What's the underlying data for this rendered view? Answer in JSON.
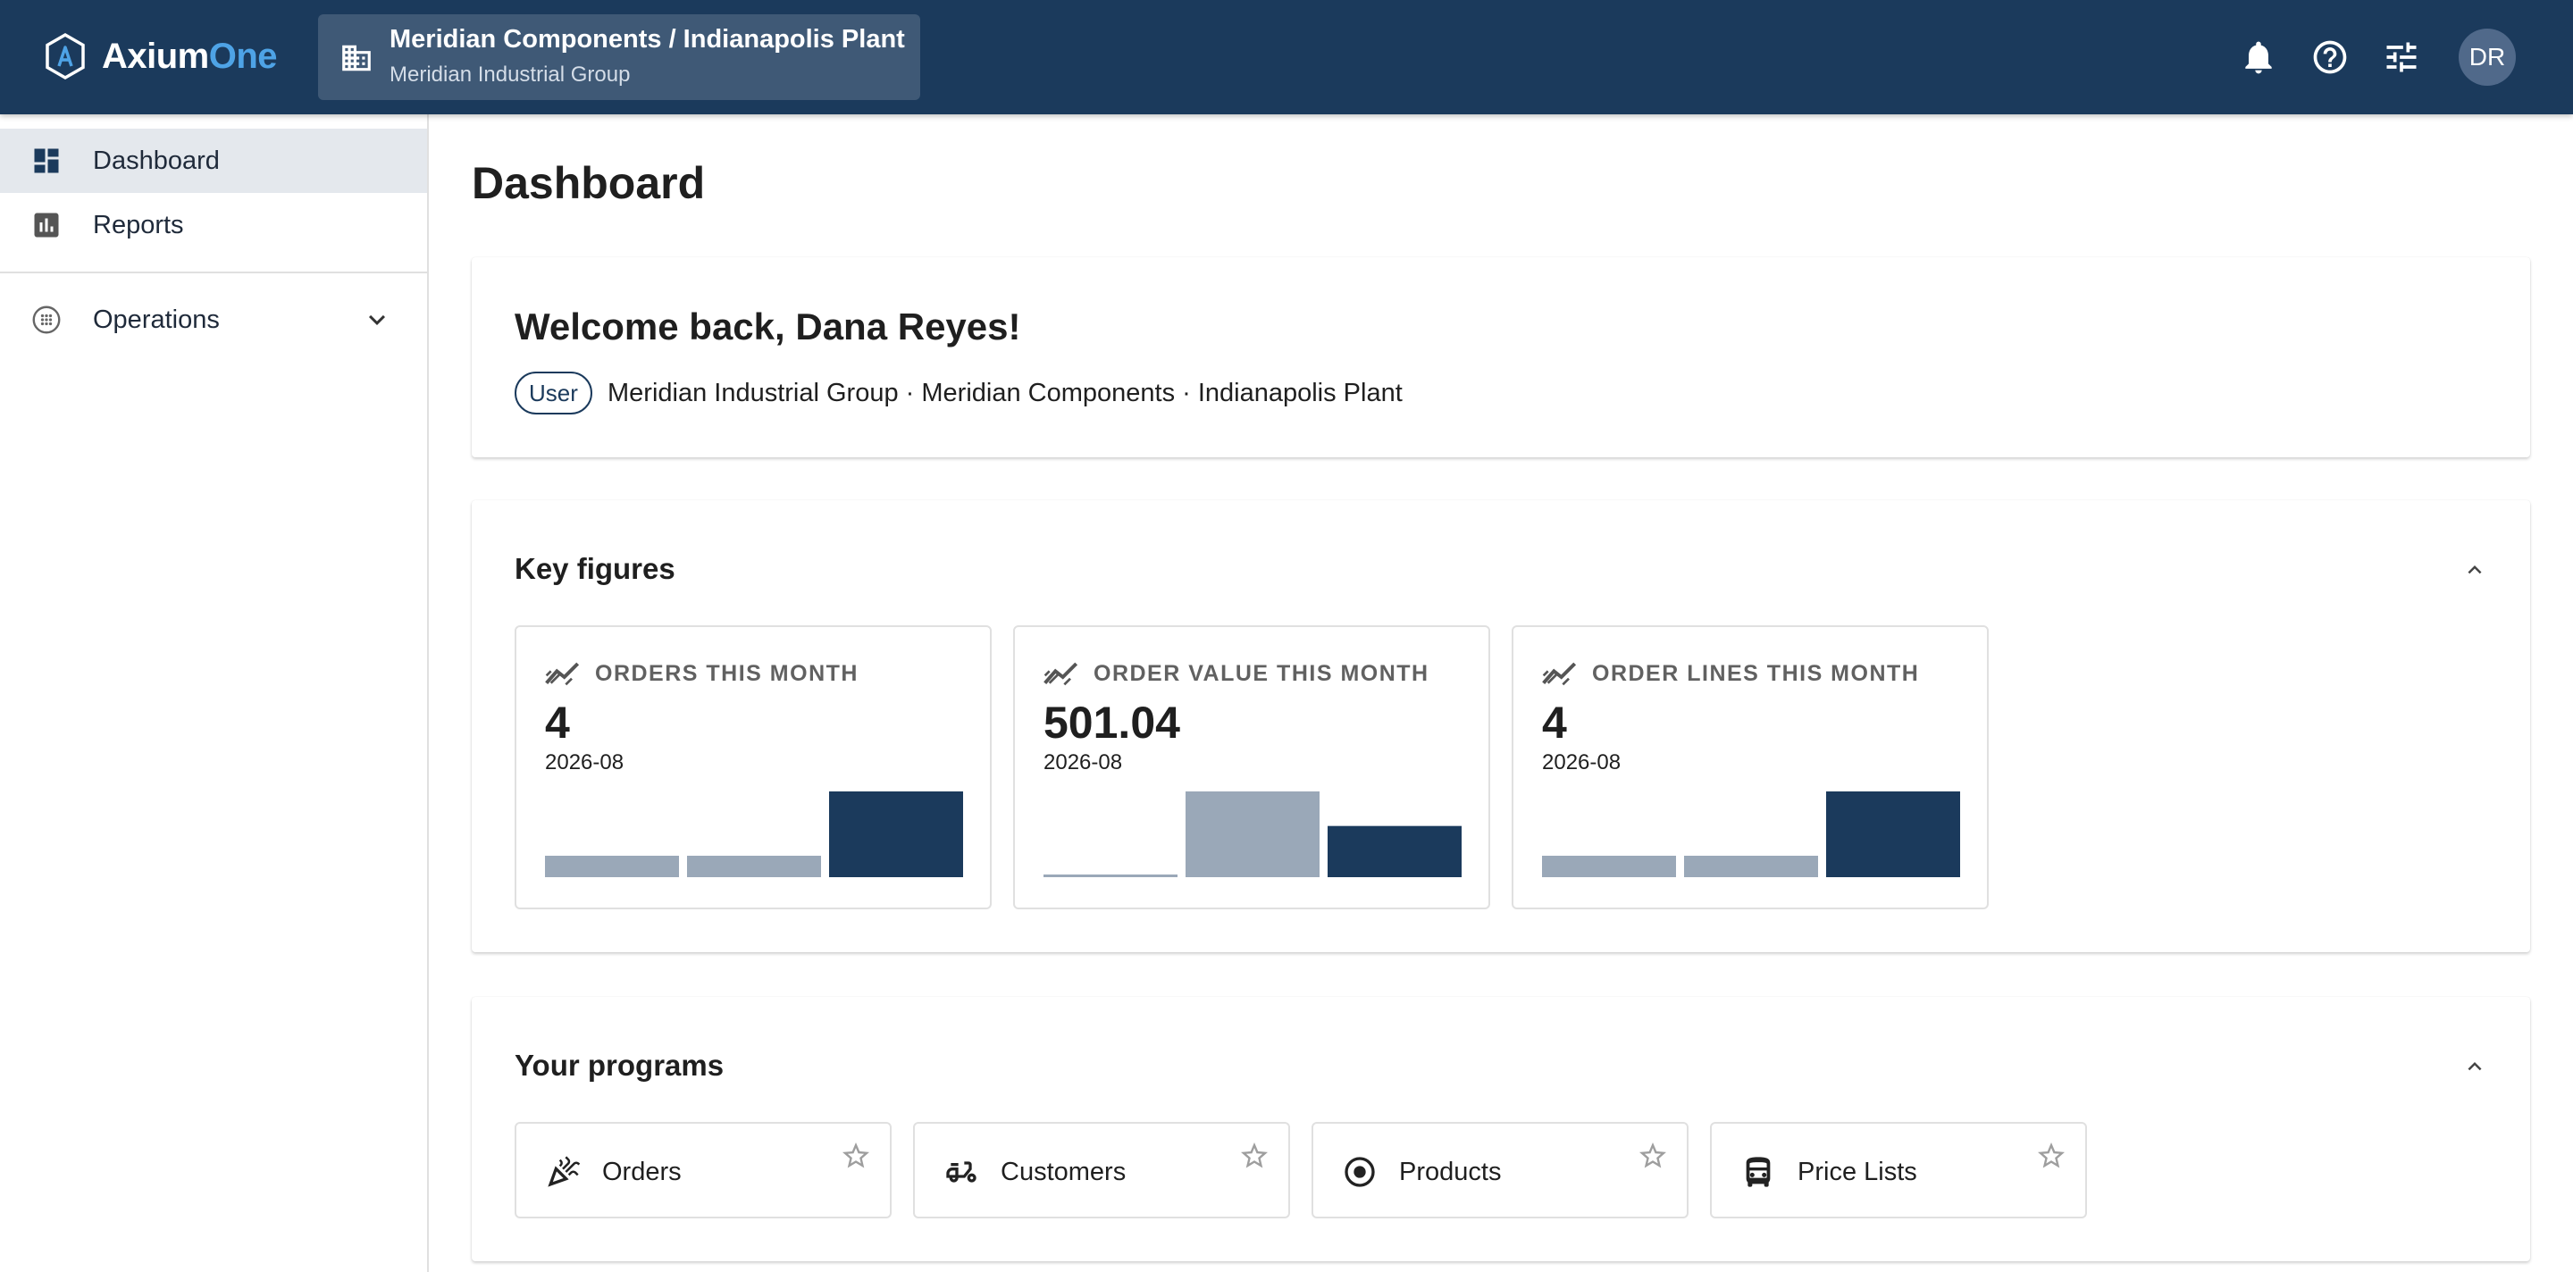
{
  "header": {
    "brand_a": "Axium",
    "brand_b": "One",
    "context_title": "Meridian Components / Indianapolis Plant",
    "context_subtitle": "Meridian Industrial Group",
    "icons": [
      "building-icon",
      "bell-icon",
      "help-icon",
      "tune-icon"
    ],
    "avatar_initials": "DR"
  },
  "sidebar": {
    "items": [
      {
        "label": "Dashboard",
        "icon": "dashboard-icon",
        "active": true
      },
      {
        "label": "Reports",
        "icon": "bar-chart-icon",
        "active": false
      },
      {
        "label": "Operations",
        "icon": "grid-circle-icon",
        "active": false
      }
    ]
  },
  "main": {
    "title": "Dashboard",
    "welcome": {
      "title": "Welcome back, Dana Reyes!",
      "role": "User",
      "org_path": "Meridian Industrial Group · Meridian Components · Indianapolis Plant"
    },
    "key_figures": {
      "title": "Key figures",
      "cards": [
        {
          "label": "ORDERS THIS MONTH",
          "value": "4",
          "period": "2026-08",
          "bars": [
            1,
            1,
            4
          ]
        },
        {
          "label": "ORDER VALUE THIS MONTH",
          "value": "501.04",
          "period": "2026-08",
          "bars": [
            15,
            839.09,
            501.04
          ]
        },
        {
          "label": "ORDER LINES THIS MONTH",
          "value": "4",
          "period": "2026-08",
          "bars": [
            1,
            1,
            4
          ]
        }
      ]
    },
    "programs": {
      "title": "Your programs",
      "items": [
        {
          "label": "Orders",
          "icon": "celebration-icon"
        },
        {
          "label": "Customers",
          "icon": "moped-icon"
        },
        {
          "label": "Products",
          "icon": "target-icon"
        },
        {
          "label": "Price Lists",
          "icon": "car-icon"
        }
      ]
    }
  },
  "colors": {
    "header_bg": "#1b3a5c",
    "accent": "#4ea3e6",
    "bar_current": "#1b3a5c",
    "bar_previous": "#9aa8b8"
  }
}
